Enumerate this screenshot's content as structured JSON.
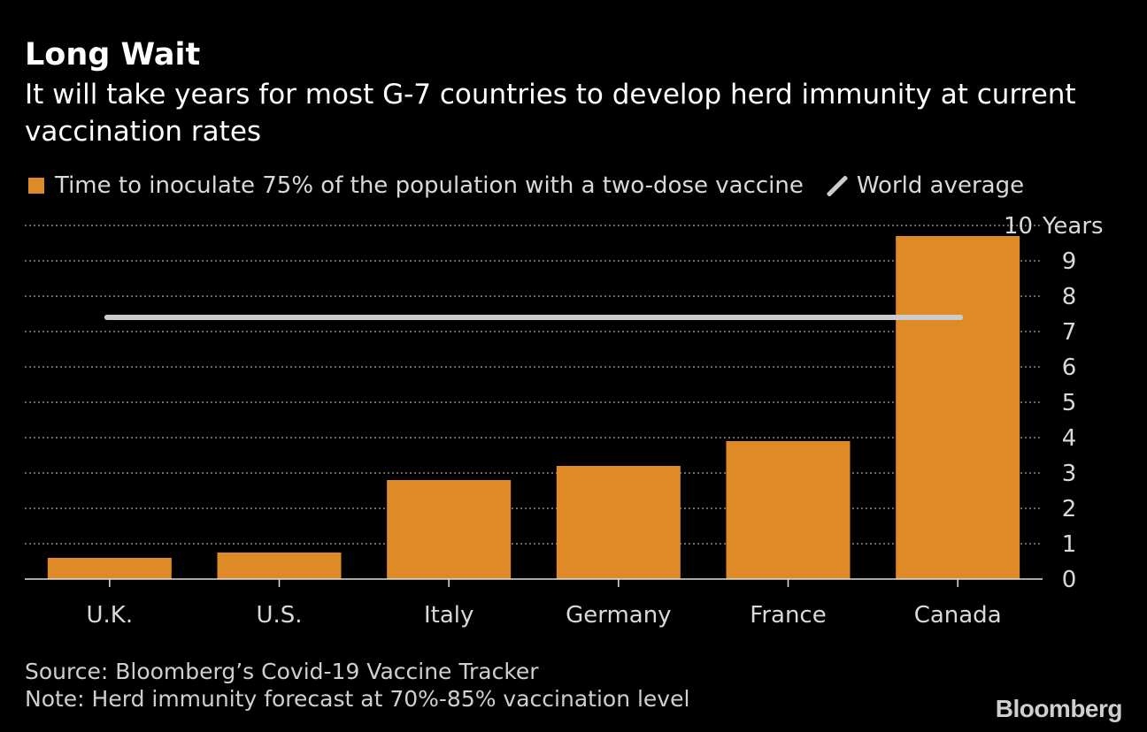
{
  "title": "Long Wait",
  "subtitle": "It will take years for most G-7 countries to develop herd immunity at current vaccination rates",
  "legend": {
    "bar_label": "Time to inoculate 75% of the population with a two-dose vaccine",
    "line_label": "World average"
  },
  "colors": {
    "bar": "#de8a26",
    "world_average": "#cccccc",
    "background": "#000000",
    "grid": "#8a8a8a"
  },
  "chart_data": {
    "type": "bar",
    "categories": [
      "U.K.",
      "U.S.",
      "Italy",
      "Germany",
      "France",
      "Canada"
    ],
    "series": [
      {
        "name": "Time to inoculate 75% of the population with a two-dose vaccine",
        "values": [
          0.6,
          0.75,
          2.8,
          3.2,
          3.9,
          9.7
        ]
      }
    ],
    "reference_line": {
      "name": "World average",
      "value": 7.4
    },
    "ylim": [
      0,
      10
    ],
    "yticks": [
      0,
      1,
      2,
      3,
      4,
      5,
      6,
      7,
      8,
      9,
      10
    ],
    "y_unit_label": "Years",
    "y_axis_position": "right",
    "grid": true,
    "legend_position": "top-left"
  },
  "footer": {
    "source": "Source: Bloomberg’s Covid-19 Vaccine Tracker",
    "note": "Note: Herd immunity forecast at 70%-85% vaccination level"
  },
  "brand": "Bloomberg"
}
